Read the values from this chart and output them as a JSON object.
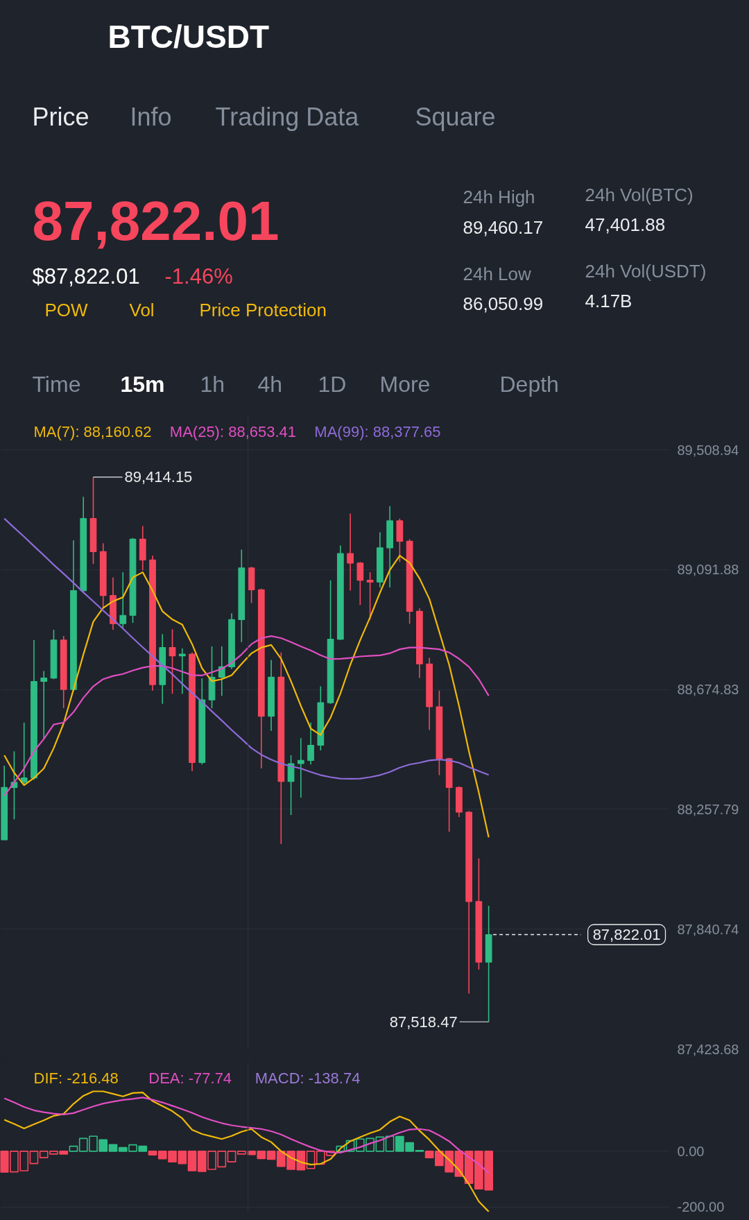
{
  "chart_data": [
    {
      "type": "other",
      "title": "BTC/USDT",
      "annotations": [
        "Price",
        "Info",
        "Trading Data",
        "Square",
        "87,822.01",
        "$87,822.01",
        "-1.46%",
        "POW",
        "Vol",
        "Price Protection",
        "24h High",
        "89,460.17",
        "24h Vol(BTC)",
        "47,401.88",
        "24h Low",
        "86,050.99",
        "24h Vol(USDT)",
        "4.17B",
        "Time",
        "15m",
        "1h",
        "4h",
        "1D",
        "More",
        "Depth"
      ]
    },
    {
      "type": "candlestick",
      "categories": [
        null,
        null,
        null,
        null,
        null,
        null,
        null,
        null,
        null,
        null,
        null,
        null,
        null,
        null,
        null,
        null,
        null,
        null,
        null,
        null,
        null,
        null,
        null,
        null,
        null,
        null,
        null,
        null,
        null,
        null,
        null,
        null,
        null,
        null,
        null,
        null,
        null,
        null,
        null,
        null,
        null,
        null,
        null,
        null,
        null,
        null,
        null,
        null,
        null,
        null
      ],
      "ohlc": [
        [
          88152,
          88410,
          88152,
          88334
        ],
        [
          88334,
          88460,
          88223,
          88352
        ],
        [
          88352,
          88560,
          88345,
          88367
        ],
        [
          88367,
          88847,
          88360,
          88703
        ],
        [
          88703,
          88739,
          88503,
          88715
        ],
        [
          88715,
          88883,
          88711,
          88847
        ],
        [
          88847,
          88861,
          88610,
          88675
        ],
        [
          88675,
          89194,
          88668,
          89019
        ],
        [
          89019,
          89346,
          89012,
          89270
        ],
        [
          89270,
          89414.15,
          89112,
          89155
        ],
        [
          89155,
          89184,
          88961,
          89002
        ],
        [
          89002,
          89065,
          88883,
          88904
        ],
        [
          88904,
          89083,
          88890,
          88933
        ],
        [
          88933,
          89202,
          88907,
          89198
        ],
        [
          89198,
          89244,
          89090,
          89126
        ],
        [
          89126,
          89141,
          88671,
          88692
        ],
        [
          88692,
          88868,
          88625,
          88821
        ],
        [
          88821,
          88885,
          88660,
          88792
        ],
        [
          88792,
          88818,
          88660,
          88798
        ],
        [
          88798,
          88804,
          88391,
          88421
        ],
        [
          88421,
          88714,
          88414,
          88639
        ],
        [
          88639,
          88825,
          88610,
          88718
        ],
        [
          88718,
          88825,
          88653,
          88754
        ],
        [
          88754,
          88940,
          88746,
          88918
        ],
        [
          88918,
          89162,
          88840,
          89098
        ],
        [
          89098,
          89102,
          88976,
          89022
        ],
        [
          89022,
          89026,
          88400,
          88582
        ],
        [
          88582,
          88778,
          88531,
          88718
        ],
        [
          88718,
          88804,
          88137,
          88355
        ],
        [
          88355,
          88446,
          88238,
          88417
        ],
        [
          88417,
          88506,
          88299,
          88428
        ],
        [
          88428,
          88560,
          88414,
          88481
        ],
        [
          88481,
          88686,
          88463,
          88629
        ],
        [
          88629,
          89055,
          88625,
          88850
        ],
        [
          88850,
          89176,
          88847,
          89148
        ],
        [
          89148,
          89287,
          89019,
          89115
        ],
        [
          89115,
          89119,
          88969,
          89055
        ],
        [
          89055,
          89083,
          88918,
          89049
        ],
        [
          89049,
          89222,
          89030,
          89168
        ],
        [
          89168,
          89313,
          89030,
          89262
        ],
        [
          89262,
          89270,
          89119,
          89191
        ],
        [
          89191,
          89198,
          88904,
          88947
        ],
        [
          88947,
          88957,
          88715,
          88764
        ],
        [
          88764,
          88785,
          88534,
          88615
        ],
        [
          88615,
          88671,
          88377,
          88434
        ],
        [
          88434,
          88437,
          88180,
          88334
        ],
        [
          88334,
          88338,
          88231,
          88248
        ],
        [
          88248,
          88252,
          87617,
          87937
        ],
        [
          87937,
          88087,
          87700,
          87726
        ],
        [
          87726,
          87922,
          87518.47,
          87822.01
        ]
      ],
      "colors": [
        "#2ebd85",
        "#2ebd85",
        "#2ebd85",
        "#2ebd85",
        "#2ebd85",
        "#2ebd85",
        "#f6465d",
        "#2ebd85",
        "#2ebd85",
        "#f6465d",
        "#f6465d",
        "#f6465d",
        "#2ebd85",
        "#2ebd85",
        "#f6465d",
        "#f6465d",
        "#2ebd85",
        "#f6465d",
        "#2ebd85",
        "#f6465d",
        "#2ebd85",
        "#2ebd85",
        "#2ebd85",
        "#2ebd85",
        "#2ebd85",
        "#f6465d",
        "#f6465d",
        "#2ebd85",
        "#f6465d",
        "#2ebd85",
        "#2ebd85",
        "#2ebd85",
        "#2ebd85",
        "#2ebd85",
        "#2ebd85",
        "#f6465d",
        "#f6465d",
        "#f6465d",
        "#2ebd85",
        "#2ebd85",
        "#f6465d",
        "#f6465d",
        "#f6465d",
        "#f6465d",
        "#f6465d",
        "#f6465d",
        "#f6465d",
        "#f6465d",
        "#f6465d",
        "#2ebd85"
      ],
      "series": [
        {
          "name": "MA(7): 88,160.62",
          "type": "line",
          "color": "#f0b90b",
          "values": [
            88446,
            88385,
            88342,
            88367,
            88400,
            88471,
            88557,
            88675,
            88797,
            88911,
            88959,
            88982,
            88996,
            89065,
            89083,
            89019,
            88947,
            88919,
            88901,
            88833,
            88749,
            88704,
            88711,
            88725,
            88764,
            88801,
            88821,
            88830,
            88782,
            88704,
            88618,
            88539,
            88517,
            88577,
            88661,
            88761,
            88847,
            88926,
            89012,
            89091,
            89141,
            89116,
            89062,
            88990,
            88876,
            88761,
            88618,
            88460,
            88317,
            88160.62
          ]
        },
        {
          "name": "MA(25): 88,653.41",
          "type": "line",
          "color": "#e04fc3",
          "values": [
            88305,
            88352,
            88400,
            88460,
            88503,
            88553,
            88560,
            88596,
            88646,
            88686,
            88711,
            88722,
            88729,
            88741,
            88751,
            88757,
            88757,
            88749,
            88737,
            88725,
            88724,
            88735,
            88747,
            88768,
            88797,
            88833,
            88854,
            88861,
            88854,
            88840,
            88825,
            88811,
            88794,
            88781,
            88782,
            88785,
            88790,
            88792,
            88794,
            88801,
            88815,
            88821,
            88821,
            88818,
            88815,
            88804,
            88782,
            88754,
            88711,
            88653.41
          ]
        },
        {
          "name": "MA(99): 88,377.65",
          "type": "line",
          "color": "#8e6bd9",
          "values": [
            89270,
            89238,
            89207,
            89174,
            89142,
            89109,
            89078,
            89046,
            89013,
            88982,
            88950,
            88919,
            88887,
            88854,
            88822,
            88791,
            88759,
            88728,
            88695,
            88663,
            88632,
            88599,
            88567,
            88534,
            88503,
            88471,
            88448,
            88431,
            88417,
            88408,
            88400,
            88388,
            88377,
            88370,
            88365,
            88364,
            88365,
            88370,
            88377,
            88388,
            88403,
            88414,
            88420,
            88428,
            88431,
            88428,
            88420,
            88405,
            88391,
            88377.65
          ]
        }
      ],
      "ylim": [
        87423.68,
        89630
      ],
      "yticks": [
        {
          "value": 87423.68,
          "label": "87,423.68"
        },
        {
          "value": 87840.74,
          "label": "87,840.74"
        },
        {
          "value": 88257.79,
          "label": "88,257.79"
        },
        {
          "value": 88674.83,
          "label": "88,674.83"
        },
        {
          "value": 89091.88,
          "label": "89,091.88"
        },
        {
          "value": 89508.94,
          "label": "89,508.94"
        }
      ],
      "grid": "y",
      "tick_labels": "y",
      "annotations": [
        "89,414.15",
        "87,518.47"
      ],
      "ref_lines": [
        {
          "axis": "y",
          "value": 87822.01,
          "label": "87,822.01",
          "line_style": "dashed",
          "color": "#eaecef"
        }
      ]
    },
    {
      "type": "bar",
      "categories": [
        null,
        null,
        null,
        null,
        null,
        null,
        null,
        null,
        null,
        null,
        null,
        null,
        null,
        null,
        null,
        null,
        null,
        null,
        null,
        null,
        null,
        null,
        null,
        null,
        null,
        null,
        null,
        null,
        null,
        null,
        null,
        null,
        null,
        null,
        null,
        null,
        null,
        null,
        null,
        null,
        null,
        null,
        null,
        null,
        null,
        null,
        null,
        null,
        null,
        null
      ],
      "series": [
        {
          "name": "DIF: -216.48",
          "type": "line",
          "color": "#f0b90b",
          "values": [
            113,
            98,
            82,
            97,
            111,
            127,
            134,
            170,
            199,
            215,
            215,
            206,
            197,
            209,
            211,
            180,
            162,
            144,
            118,
            77,
            62,
            53,
            44,
            55,
            70,
            80,
            51,
            33,
            0,
            -23,
            -39,
            -48,
            -45,
            -28,
            10,
            36,
            51,
            65,
            77,
            106,
            125,
            111,
            74,
            41,
            2,
            -31,
            -67,
            -118,
            -180,
            -216.48
          ]
        },
        {
          "name": "DEA: -77.74",
          "type": "line",
          "color": "#e04fc3",
          "values": [
            190,
            175,
            159,
            147,
            140,
            135,
            132,
            137,
            149,
            161,
            171,
            178,
            184,
            188,
            193,
            185,
            175,
            163,
            151,
            138,
            123,
            111,
            101,
            93,
            88,
            84,
            80,
            72,
            60,
            44,
            29,
            15,
            3,
            -4,
            -5,
            5,
            15,
            28,
            39,
            53,
            67,
            78,
            80,
            75,
            57,
            36,
            5,
            -21,
            -46,
            -77.74
          ]
        },
        {
          "type": "bar",
          "colors": [
            "#f6465d",
            "#f6465d",
            "#f6465d",
            "#f6465d",
            "#f6465d",
            "#f6465d",
            "#f6465d",
            "#2ebd85",
            "#2ebd85",
            "#2ebd85",
            "#2ebd85",
            "#2ebd85",
            "#2ebd85",
            "#2ebd85",
            "#2ebd85",
            "#f6465d",
            "#f6465d",
            "#f6465d",
            "#f6465d",
            "#f6465d",
            "#f6465d",
            "#f6465d",
            "#f6465d",
            "#f6465d",
            "#f6465d",
            "#f6465d",
            "#f6465d",
            "#f6465d",
            "#f6465d",
            "#f6465d",
            "#f6465d",
            "#f6465d",
            "#f6465d",
            "#f6465d",
            "#2ebd85",
            "#2ebd85",
            "#2ebd85",
            "#2ebd85",
            "#2ebd85",
            "#2ebd85",
            "#2ebd85",
            "#2ebd85",
            "#2ebd85",
            "#f6465d",
            "#f6465d",
            "#f6465d",
            "#f6465d",
            "#f6465d",
            "#f6465d",
            "#f6465d"
          ],
          "values": [
            -75,
            -74,
            -70,
            -44,
            -23,
            -10,
            -10,
            18,
            46,
            54,
            41,
            24,
            13,
            23,
            18,
            -13,
            -27,
            -38,
            -44,
            -70,
            -72,
            -65,
            -56,
            -38,
            -10,
            -12,
            -26,
            -29,
            -54,
            -65,
            -67,
            -62,
            -46,
            -15,
            18,
            38,
            44,
            46,
            51,
            54,
            53,
            31,
            3,
            -23,
            -51,
            -74,
            -90,
            -115,
            -135,
            -138.74
          ]
        }
      ],
      "ylim": [
        -218,
        322
      ],
      "yticks": [
        {
          "value": -200,
          "label": "-200.00"
        },
        {
          "value": 0,
          "label": "0.00"
        }
      ],
      "grid": "y",
      "tick_labels": "y",
      "annotations": [
        "MACD: -138.74"
      ]
    }
  ]
}
